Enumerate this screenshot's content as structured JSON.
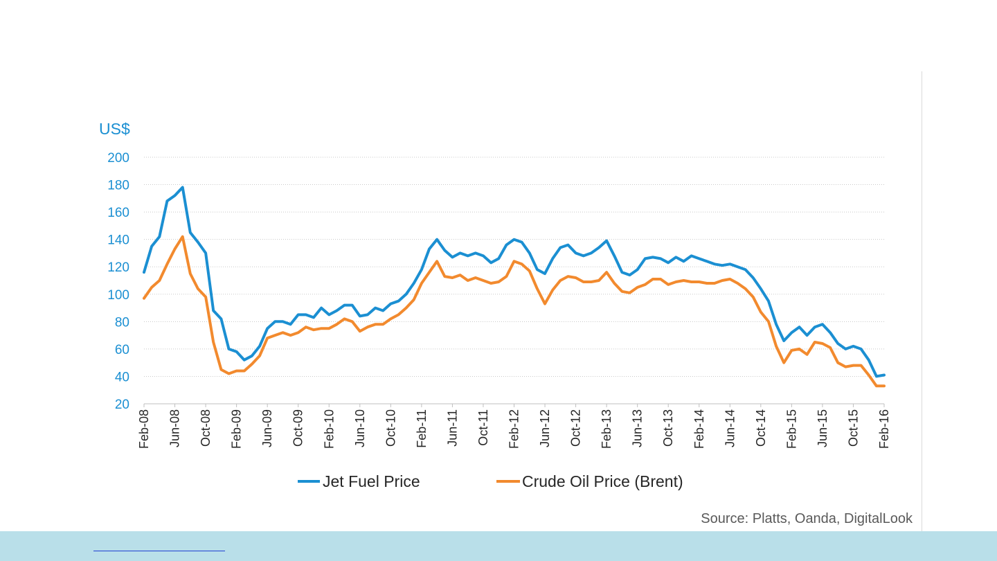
{
  "colors": {
    "jet_fuel": "#1b8fd2",
    "crude_oil": "#f28a2e",
    "axis_text": "#1b8fd2",
    "footer": "#b9dfe9"
  },
  "source": "Source: Platts, Oanda, DigitalLook",
  "chart_data": {
    "type": "line",
    "title": "",
    "ylabel": "US$",
    "xlabel": "",
    "ylim": [
      20,
      200
    ],
    "yticks": [
      20,
      40,
      60,
      80,
      100,
      120,
      140,
      160,
      180,
      200
    ],
    "x_start": "2008-02",
    "x_end": "2016-02",
    "xtick_labels": [
      "Feb-08",
      "Jun-08",
      "Oct-08",
      "Feb-09",
      "Jun-09",
      "Oct-09",
      "Feb-10",
      "Jun-10",
      "Oct-10",
      "Feb-11",
      "Jun-11",
      "Oct-11",
      "Feb-12",
      "Jun-12",
      "Oct-12",
      "Feb-13",
      "Jun-13",
      "Oct-13",
      "Feb-14",
      "Jun-14",
      "Oct-14",
      "Feb-15",
      "Jun-15",
      "Oct-15",
      "Feb-16"
    ],
    "grid": true,
    "legend_position": "bottom",
    "x": [
      "2008-02",
      "2008-03",
      "2008-04",
      "2008-05",
      "2008-06",
      "2008-07",
      "2008-08",
      "2008-09",
      "2008-10",
      "2008-11",
      "2008-12",
      "2009-01",
      "2009-02",
      "2009-03",
      "2009-04",
      "2009-05",
      "2009-06",
      "2009-07",
      "2009-08",
      "2009-09",
      "2009-10",
      "2009-11",
      "2009-12",
      "2010-01",
      "2010-02",
      "2010-03",
      "2010-04",
      "2010-05",
      "2010-06",
      "2010-07",
      "2010-08",
      "2010-09",
      "2010-10",
      "2010-11",
      "2010-12",
      "2011-01",
      "2011-02",
      "2011-03",
      "2011-04",
      "2011-05",
      "2011-06",
      "2011-07",
      "2011-08",
      "2011-09",
      "2011-10",
      "2011-11",
      "2011-12",
      "2012-01",
      "2012-02",
      "2012-03",
      "2012-04",
      "2012-05",
      "2012-06",
      "2012-07",
      "2012-08",
      "2012-09",
      "2012-10",
      "2012-11",
      "2012-12",
      "2013-01",
      "2013-02",
      "2013-03",
      "2013-04",
      "2013-05",
      "2013-06",
      "2013-07",
      "2013-08",
      "2013-09",
      "2013-10",
      "2013-11",
      "2013-12",
      "2014-01",
      "2014-02",
      "2014-03",
      "2014-04",
      "2014-05",
      "2014-06",
      "2014-07",
      "2014-08",
      "2014-09",
      "2014-10",
      "2014-11",
      "2014-12",
      "2015-01",
      "2015-02",
      "2015-03",
      "2015-04",
      "2015-05",
      "2015-06",
      "2015-07",
      "2015-08",
      "2015-09",
      "2015-10",
      "2015-11",
      "2015-12",
      "2016-01",
      "2016-02"
    ],
    "series": [
      {
        "name": "Jet Fuel Price",
        "values": [
          116,
          135,
          142,
          168,
          172,
          178,
          145,
          138,
          130,
          88,
          82,
          60,
          58,
          52,
          55,
          62,
          75,
          80,
          80,
          78,
          85,
          85,
          83,
          90,
          85,
          88,
          92,
          92,
          84,
          85,
          90,
          88,
          93,
          95,
          100,
          108,
          118,
          133,
          140,
          132,
          127,
          130,
          128,
          130,
          128,
          123,
          126,
          136,
          140,
          138,
          130,
          118,
          115,
          126,
          134,
          136,
          130,
          128,
          130,
          134,
          139,
          128,
          116,
          114,
          118,
          126,
          127,
          126,
          123,
          127,
          124,
          128,
          126,
          124,
          122,
          121,
          122,
          120,
          118,
          112,
          104,
          95,
          78,
          66,
          72,
          76,
          70,
          76,
          78,
          72,
          64,
          60,
          62,
          60,
          52,
          40,
          41
        ]
      },
      {
        "name": "Crude Oil Price (Brent)",
        "values": [
          97,
          105,
          110,
          122,
          133,
          142,
          115,
          104,
          98,
          65,
          45,
          42,
          44,
          44,
          49,
          55,
          68,
          70,
          72,
          70,
          72,
          76,
          74,
          75,
          75,
          78,
          82,
          80,
          73,
          76,
          78,
          78,
          82,
          85,
          90,
          96,
          108,
          116,
          124,
          113,
          112,
          114,
          110,
          112,
          110,
          108,
          109,
          113,
          124,
          122,
          117,
          104,
          93,
          103,
          110,
          113,
          112,
          109,
          109,
          110,
          116,
          108,
          102,
          101,
          105,
          107,
          111,
          111,
          107,
          109,
          110,
          109,
          109,
          108,
          108,
          110,
          111,
          108,
          104,
          98,
          87,
          80,
          62,
          50,
          59,
          60,
          56,
          65,
          64,
          61,
          50,
          47,
          48,
          48,
          41,
          33,
          33
        ]
      }
    ]
  }
}
